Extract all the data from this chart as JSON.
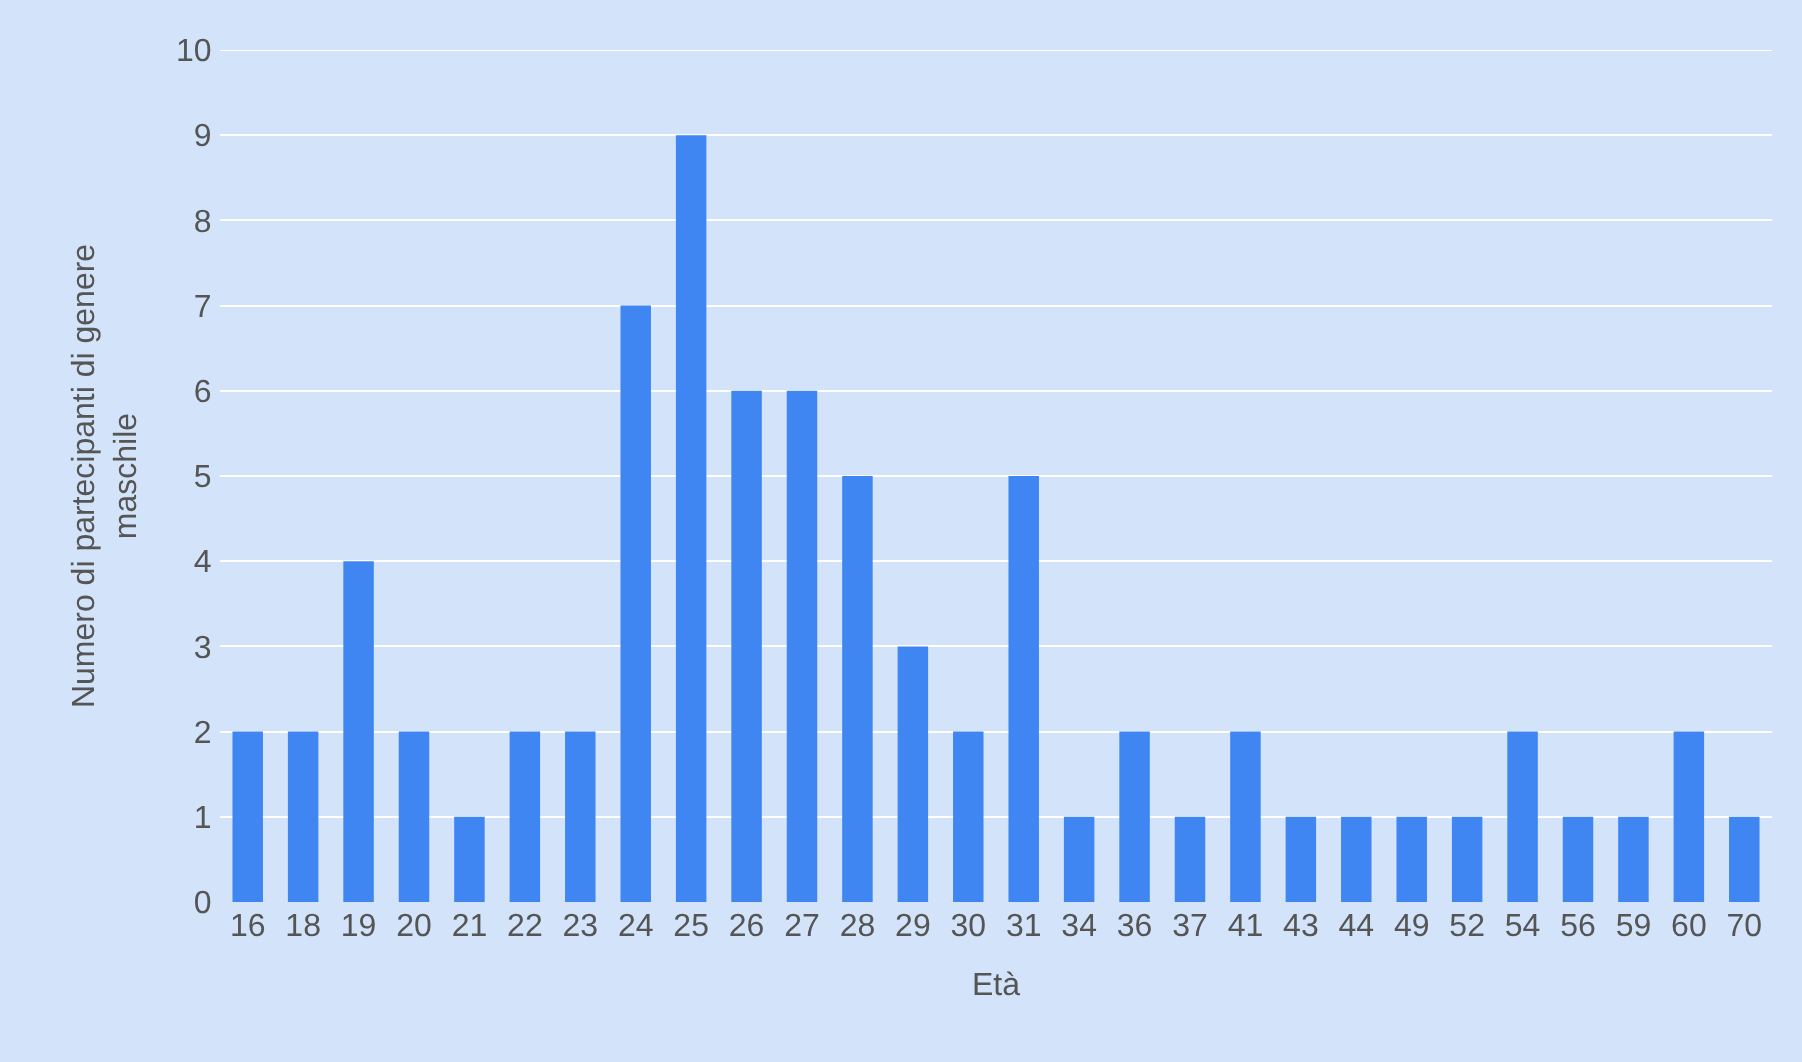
{
  "chart_data": {
    "type": "bar",
    "xlabel": "Età",
    "ylabel": "Numero di partecipanti di genere maschile",
    "categories": [
      "16",
      "18",
      "19",
      "20",
      "21",
      "22",
      "23",
      "24",
      "25",
      "26",
      "27",
      "28",
      "29",
      "30",
      "31",
      "34",
      "36",
      "37",
      "41",
      "43",
      "44",
      "49",
      "52",
      "54",
      "56",
      "59",
      "60",
      "70"
    ],
    "values": [
      2,
      2,
      4,
      2,
      1,
      2,
      2,
      7,
      9,
      6,
      6,
      5,
      3,
      2,
      5,
      1,
      2,
      1,
      2,
      1,
      1,
      1,
      1,
      2,
      1,
      1,
      2,
      1
    ],
    "color": "#3f86f2",
    "ylim": [
      0,
      10
    ],
    "yticks": [
      0,
      1,
      2,
      3,
      4,
      5,
      6,
      7,
      8,
      9,
      10
    ],
    "grid": "y"
  }
}
